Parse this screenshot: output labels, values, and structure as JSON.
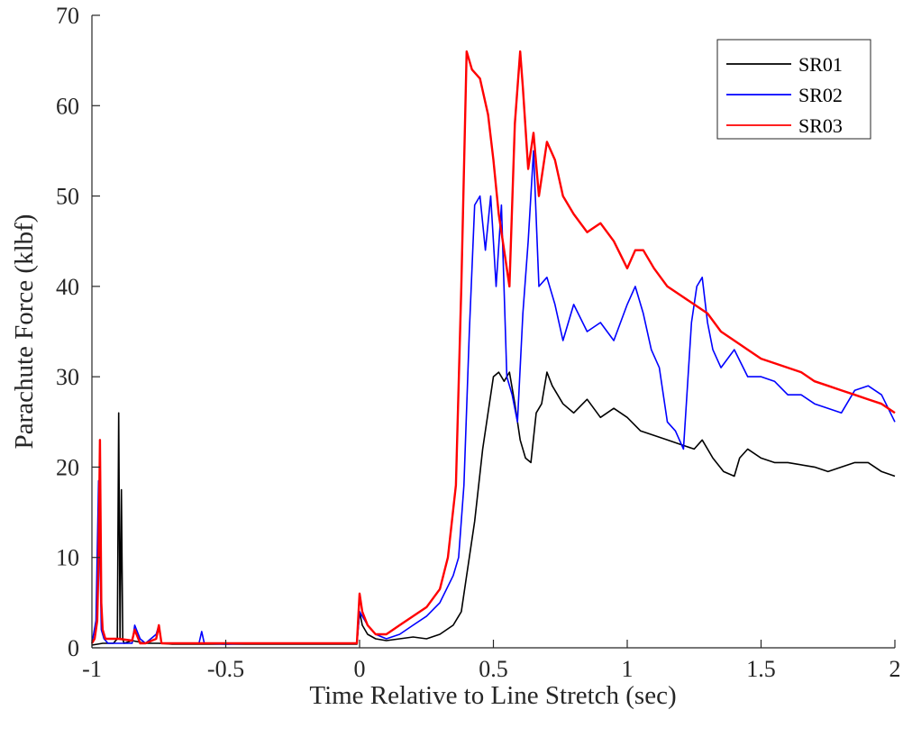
{
  "chart_data": {
    "type": "line",
    "title": "",
    "xlabel": "Time Relative to Line Stretch (sec)",
    "ylabel": "Parachute Force (klbf)",
    "xlim": [
      -1,
      2
    ],
    "ylim": [
      0,
      70
    ],
    "xticks": [
      -1,
      -0.5,
      0,
      0.5,
      1,
      1.5,
      2
    ],
    "xtick_labels": [
      "-1",
      "-0.5",
      "0",
      "0.5",
      "1",
      "1.5",
      "2"
    ],
    "yticks": [
      0,
      10,
      20,
      30,
      40,
      50,
      60,
      70
    ],
    "ytick_labels": [
      "0",
      "10",
      "20",
      "30",
      "40",
      "50",
      "60",
      "70"
    ],
    "grid": false,
    "legend_position": "top-right",
    "series": [
      {
        "name": "SR01",
        "color": "#000000",
        "x": [
          -1.0,
          -0.96,
          -0.92,
          -0.905,
          -0.9,
          -0.895,
          -0.89,
          -0.885,
          -0.88,
          -0.85,
          -0.8,
          -0.75,
          -0.7,
          -0.6,
          -0.5,
          -0.4,
          -0.3,
          -0.2,
          -0.1,
          -0.01,
          0.0,
          0.01,
          0.03,
          0.06,
          0.1,
          0.15,
          0.2,
          0.25,
          0.3,
          0.35,
          0.38,
          0.4,
          0.43,
          0.46,
          0.5,
          0.52,
          0.54,
          0.56,
          0.58,
          0.6,
          0.62,
          0.64,
          0.66,
          0.68,
          0.7,
          0.72,
          0.76,
          0.8,
          0.85,
          0.9,
          0.95,
          1.0,
          1.05,
          1.1,
          1.15,
          1.2,
          1.25,
          1.28,
          1.32,
          1.36,
          1.4,
          1.42,
          1.45,
          1.5,
          1.55,
          1.6,
          1.7,
          1.75,
          1.8,
          1.85,
          1.9,
          1.95,
          2.0
        ],
        "y": [
          0.3,
          0.5,
          0.5,
          1.0,
          26.0,
          1.0,
          17.5,
          1.0,
          0.5,
          0.8,
          0.5,
          0.5,
          0.4,
          0.4,
          0.4,
          0.4,
          0.4,
          0.4,
          0.4,
          0.4,
          4.0,
          2.5,
          1.5,
          1.0,
          0.8,
          1.0,
          1.2,
          1.0,
          1.5,
          2.5,
          4.0,
          8.0,
          14.0,
          22.0,
          30.0,
          30.5,
          29.5,
          30.5,
          27.0,
          23.0,
          21.0,
          20.5,
          26.0,
          27.0,
          30.5,
          29.0,
          27.0,
          26.0,
          27.5,
          25.5,
          26.5,
          25.5,
          24.0,
          23.5,
          23.0,
          22.5,
          22.0,
          23.0,
          21.0,
          19.5,
          19.0,
          21.0,
          22.0,
          21.0,
          20.5,
          20.5,
          20.0,
          19.5,
          20.0,
          20.5,
          20.5,
          19.5,
          19.0
        ]
      },
      {
        "name": "SR02",
        "color": "#0000ff",
        "x": [
          -1.0,
          -0.985,
          -0.975,
          -0.965,
          -0.955,
          -0.94,
          -0.9,
          -0.85,
          -0.84,
          -0.82,
          -0.8,
          -0.76,
          -0.75,
          -0.74,
          -0.7,
          -0.65,
          -0.6,
          -0.59,
          -0.58,
          -0.5,
          -0.4,
          -0.3,
          -0.2,
          -0.1,
          -0.01,
          0.0,
          0.01,
          0.03,
          0.06,
          0.1,
          0.15,
          0.2,
          0.25,
          0.3,
          0.35,
          0.37,
          0.39,
          0.41,
          0.43,
          0.45,
          0.47,
          0.49,
          0.51,
          0.53,
          0.55,
          0.57,
          0.59,
          0.61,
          0.63,
          0.65,
          0.67,
          0.7,
          0.73,
          0.76,
          0.8,
          0.85,
          0.9,
          0.95,
          1.0,
          1.03,
          1.06,
          1.09,
          1.12,
          1.15,
          1.18,
          1.21,
          1.24,
          1.26,
          1.28,
          1.3,
          1.32,
          1.35,
          1.4,
          1.45,
          1.5,
          1.55,
          1.6,
          1.65,
          1.7,
          1.75,
          1.8,
          1.85,
          1.9,
          1.95,
          2.0
        ],
        "y": [
          0.5,
          3.0,
          18.5,
          2.0,
          1.0,
          0.5,
          0.5,
          0.5,
          2.5,
          1.0,
          0.5,
          1.5,
          2.5,
          0.5,
          0.5,
          0.5,
          0.5,
          1.8,
          0.5,
          0.4,
          0.5,
          0.5,
          0.5,
          0.5,
          0.5,
          4.0,
          3.5,
          2.5,
          1.5,
          1.0,
          1.5,
          2.5,
          3.5,
          5.0,
          8.0,
          10.0,
          18.0,
          35.0,
          49.0,
          50.0,
          44.0,
          50.0,
          40.0,
          49.0,
          30.0,
          28.0,
          25.0,
          37.0,
          45.0,
          55.0,
          40.0,
          41.0,
          38.0,
          34.0,
          38.0,
          35.0,
          36.0,
          34.0,
          38.0,
          40.0,
          37.0,
          33.0,
          31.0,
          25.0,
          24.0,
          22.0,
          36.0,
          40.0,
          41.0,
          36.0,
          33.0,
          31.0,
          33.0,
          30.0,
          30.0,
          29.5,
          28.0,
          28.0,
          27.0,
          26.5,
          26.0,
          28.5,
          29.0,
          28.0,
          25.0
        ]
      },
      {
        "name": "SR03",
        "color": "#ff0000",
        "x": [
          -1.0,
          -0.99,
          -0.98,
          -0.975,
          -0.97,
          -0.965,
          -0.96,
          -0.95,
          -0.9,
          -0.85,
          -0.84,
          -0.82,
          -0.8,
          -0.76,
          -0.75,
          -0.74,
          -0.7,
          -0.6,
          -0.5,
          -0.4,
          -0.3,
          -0.2,
          -0.1,
          -0.01,
          0.0,
          0.01,
          0.03,
          0.06,
          0.1,
          0.15,
          0.2,
          0.25,
          0.3,
          0.33,
          0.36,
          0.38,
          0.4,
          0.42,
          0.45,
          0.48,
          0.5,
          0.52,
          0.54,
          0.56,
          0.58,
          0.6,
          0.61,
          0.63,
          0.65,
          0.67,
          0.7,
          0.73,
          0.76,
          0.8,
          0.85,
          0.9,
          0.95,
          1.0,
          1.03,
          1.06,
          1.1,
          1.15,
          1.2,
          1.25,
          1.3,
          1.35,
          1.4,
          1.45,
          1.5,
          1.55,
          1.6,
          1.65,
          1.7,
          1.75,
          1.8,
          1.85,
          1.9,
          1.95,
          2.0
        ],
        "y": [
          0.5,
          1.0,
          3.0,
          10.0,
          23.0,
          5.0,
          2.0,
          1.0,
          1.0,
          0.8,
          2.0,
          0.5,
          0.5,
          1.0,
          2.5,
          0.5,
          0.5,
          0.5,
          0.5,
          0.5,
          0.5,
          0.5,
          0.5,
          0.5,
          6.0,
          4.0,
          2.5,
          1.5,
          1.5,
          2.5,
          3.5,
          4.5,
          6.5,
          10.0,
          18.0,
          40.0,
          66.0,
          64.0,
          63.0,
          59.0,
          54.0,
          48.0,
          44.0,
          40.0,
          58.0,
          66.0,
          62.0,
          53.0,
          57.0,
          50.0,
          56.0,
          54.0,
          50.0,
          48.0,
          46.0,
          47.0,
          45.0,
          42.0,
          44.0,
          44.0,
          42.0,
          40.0,
          39.0,
          38.0,
          37.0,
          35.0,
          34.0,
          33.0,
          32.0,
          31.5,
          31.0,
          30.5,
          29.5,
          29.0,
          28.5,
          28.0,
          27.5,
          27.0,
          26.0
        ]
      }
    ]
  }
}
